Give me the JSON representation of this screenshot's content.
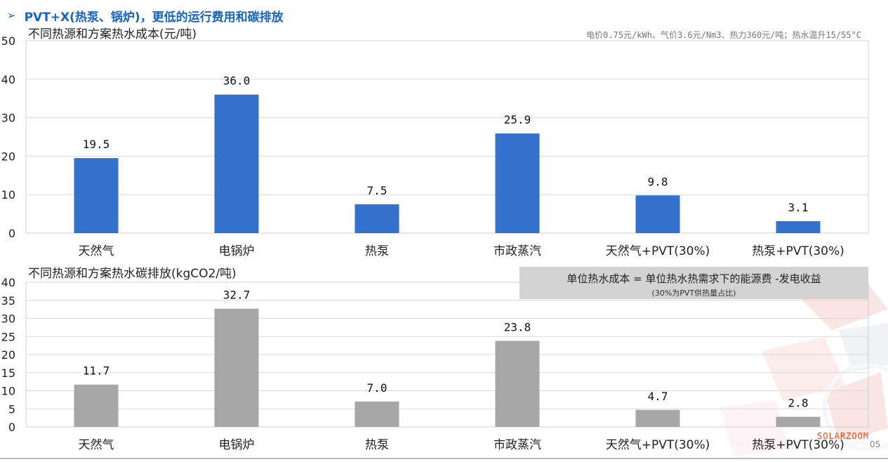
{
  "header": {
    "arrow": "➢",
    "title": "PVT+X(热泵、锅炉)，更低的运行费用和碳排放"
  },
  "note": "电价0.75元/kWh、气价3.6元/Nm3、热力360元/吨；热水温升15/55°C",
  "formula_box": {
    "main": "单位热水成本 = 单位热水热需求下的能源费 -发电收益",
    "sub": "(30%为PVT供热量占比)"
  },
  "brand": "SOLARZOOM",
  "page_number": "05",
  "colors": {
    "cost_bar": "#3371cc",
    "carbon_bar": "#a6a6a6",
    "accent": "#1565c0",
    "formula_bg": "#d3d3d3"
  },
  "chart_data": [
    {
      "type": "bar",
      "title": "不同热源和方案热水成本(元/吨)",
      "categories": [
        "天然气",
        "电锅炉",
        "热泵",
        "市政蒸汽",
        "天然气+PVT(30%)",
        "热泵+PVT(30%)"
      ],
      "values": [
        19.5,
        36.0,
        7.5,
        25.9,
        9.8,
        3.1
      ],
      "value_labels": [
        "19.5",
        "36.0",
        "7.5",
        "25.9",
        "9.8",
        "3.1"
      ],
      "ylim": [
        0,
        50
      ],
      "yticks": [
        0,
        10,
        20,
        30,
        40,
        50
      ],
      "grid": true,
      "color": "#3371cc"
    },
    {
      "type": "bar",
      "title": "不同热源和方案热水碳排放(kgCO2/吨)",
      "categories": [
        "天然气",
        "电锅炉",
        "热泵",
        "市政蒸汽",
        "天然气+PVT(30%)",
        "热泵+PVT(30%)"
      ],
      "values": [
        11.7,
        32.7,
        7.0,
        23.8,
        4.7,
        2.8
      ],
      "value_labels": [
        "11.7",
        "32.7",
        "7.0",
        "23.8",
        "4.7",
        "2.8"
      ],
      "ylim": [
        0,
        40
      ],
      "yticks": [
        0,
        5,
        10,
        15,
        20,
        25,
        30,
        35,
        40
      ],
      "grid": true,
      "color": "#a6a6a6"
    }
  ]
}
